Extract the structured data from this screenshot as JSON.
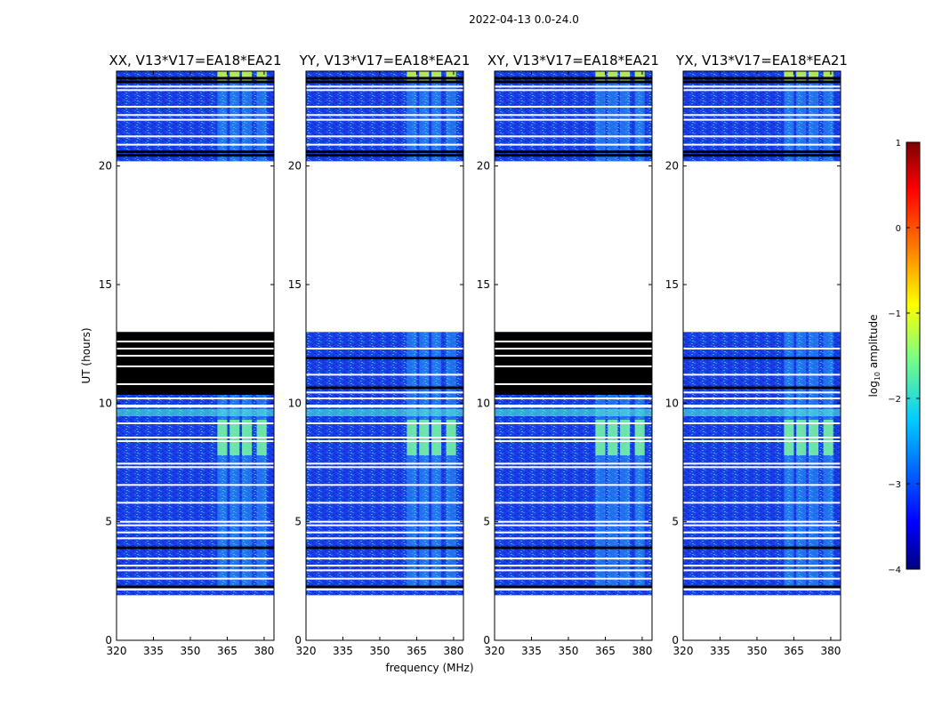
{
  "figure_title": "2022-04-13 0.0-24.0",
  "chart_data": {
    "type": "heatmap",
    "title": "2022-04-13 0.0-24.0",
    "xlabel": "frequency (MHz)",
    "ylabel": "UT (hours)",
    "xlim": [
      320,
      384
    ],
    "ylim": [
      0,
      24
    ],
    "x_ticks": [
      320,
      335,
      350,
      365,
      380
    ],
    "y_ticks": [
      0,
      5,
      10,
      15,
      20
    ],
    "panels": [
      {
        "title": "XX, V13*V17=EA18*EA21",
        "flagged_black_hours": [
          10.35,
          13.0
        ]
      },
      {
        "title": "YY, V13*V17=EA18*EA21",
        "flagged_black_hours": null
      },
      {
        "title": "XY, V13*V17=EA18*EA21",
        "flagged_black_hours": [
          10.35,
          13.0
        ]
      },
      {
        "title": "YX, V13*V17=EA18*EA21",
        "flagged_black_hours": null
      }
    ],
    "data_coverage_hours": [
      [
        1.9,
        2.1
      ],
      [
        2.3,
        13.0
      ],
      [
        20.2,
        24.0
      ]
    ],
    "empty_hours": [
      [
        0.0,
        1.9
      ],
      [
        13.0,
        20.2
      ]
    ],
    "rfi_bands_mhz": [
      [
        361,
        365
      ],
      [
        366,
        370
      ],
      [
        371,
        375
      ],
      [
        377,
        381
      ]
    ],
    "rfi_strong_hours": [
      [
        7.8,
        9.3
      ],
      [
        23.5,
        24.0
      ]
    ],
    "colorbar": {
      "label": "log10 amplitude",
      "label_main": "log",
      "label_sub": "10",
      "label_rest": " amplitude",
      "range": [
        -4,
        1
      ],
      "ticks": [
        "1",
        "0",
        "−1",
        "−2",
        "−3",
        "−4"
      ],
      "tick_values": [
        1,
        0,
        -1,
        -2,
        -3,
        -4
      ],
      "colors": [
        "#00007f",
        "#0000ff",
        "#007fff",
        "#00ffff",
        "#7fff7f",
        "#ffff00",
        "#ff7f00",
        "#ff0000",
        "#7f0000"
      ]
    }
  }
}
